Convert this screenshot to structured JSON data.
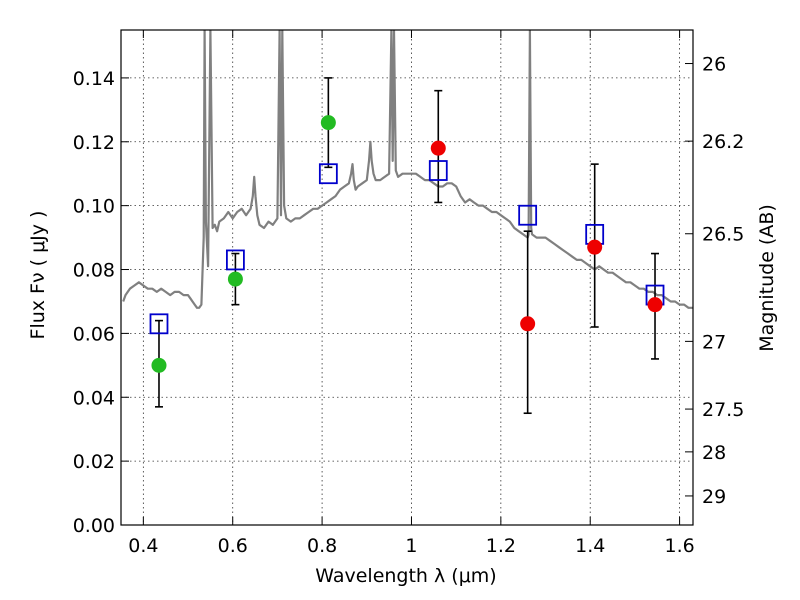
{
  "chart_data": {
    "type": "scatter",
    "title": "",
    "xlabel": "Wavelength  λ (μm)",
    "ylabel": "Flux  Fν (  μJy )",
    "ylabel_right": "Magnitude (AB)",
    "xlim": [
      0.35,
      1.63
    ],
    "ylim": [
      0.0,
      0.155
    ],
    "grid": true,
    "xticks": [
      0.4,
      0.6,
      0.8,
      1.0,
      1.2,
      1.4,
      1.6
    ],
    "xtick_labels": [
      "0.4",
      "0.6",
      "0.8",
      "1",
      "1.2",
      "1.4",
      "1.6"
    ],
    "yticks": [
      0.0,
      0.02,
      0.04,
      0.06,
      0.08,
      0.1,
      0.12,
      0.14
    ],
    "ytick_labels": [
      "0.00",
      "0.02",
      "0.04",
      "0.06",
      "0.08",
      "0.10",
      "0.12",
      "0.14"
    ],
    "right_ticks": [
      {
        "label": "26",
        "flux": 0.1445
      },
      {
        "label": "26.2",
        "flux": 0.1202
      },
      {
        "label": "26.5",
        "flux": 0.0912
      },
      {
        "label": "27",
        "flux": 0.0575
      },
      {
        "label": "27.5",
        "flux": 0.0363
      },
      {
        "label": "28",
        "flux": 0.0229
      },
      {
        "label": "29",
        "flux": 0.0091
      }
    ],
    "series": [
      {
        "name": "model_spectrum",
        "style": "line",
        "color": "#808080",
        "x": [
          0.355,
          0.36,
          0.37,
          0.38,
          0.39,
          0.4,
          0.41,
          0.42,
          0.43,
          0.44,
          0.45,
          0.46,
          0.47,
          0.48,
          0.49,
          0.5,
          0.505,
          0.51,
          0.515,
          0.52,
          0.525,
          0.53,
          0.535,
          0.537,
          0.54,
          0.545,
          0.55,
          0.555,
          0.56,
          0.565,
          0.57,
          0.58,
          0.59,
          0.6,
          0.61,
          0.62,
          0.63,
          0.64,
          0.645,
          0.648,
          0.651,
          0.655,
          0.66,
          0.67,
          0.68,
          0.69,
          0.7,
          0.705,
          0.708,
          0.711,
          0.715,
          0.72,
          0.73,
          0.74,
          0.75,
          0.76,
          0.77,
          0.78,
          0.79,
          0.8,
          0.81,
          0.82,
          0.83,
          0.84,
          0.85,
          0.86,
          0.865,
          0.868,
          0.871,
          0.875,
          0.88,
          0.89,
          0.9,
          0.905,
          0.908,
          0.911,
          0.915,
          0.92,
          0.93,
          0.94,
          0.95,
          0.955,
          0.958,
          0.961,
          0.965,
          0.97,
          0.98,
          0.99,
          1.0,
          1.01,
          1.02,
          1.03,
          1.04,
          1.05,
          1.06,
          1.07,
          1.08,
          1.09,
          1.1,
          1.11,
          1.12,
          1.13,
          1.14,
          1.15,
          1.16,
          1.17,
          1.18,
          1.19,
          1.2,
          1.21,
          1.22,
          1.23,
          1.24,
          1.25,
          1.26,
          1.262,
          1.265,
          1.268,
          1.27,
          1.28,
          1.29,
          1.3,
          1.31,
          1.32,
          1.33,
          1.34,
          1.35,
          1.36,
          1.37,
          1.38,
          1.39,
          1.4,
          1.41,
          1.42,
          1.43,
          1.44,
          1.45,
          1.46,
          1.47,
          1.48,
          1.49,
          1.5,
          1.51,
          1.52,
          1.53,
          1.54,
          1.55,
          1.56,
          1.57,
          1.58,
          1.59,
          1.6,
          1.61,
          1.62,
          1.63
        ],
        "y": [
          0.07,
          0.072,
          0.074,
          0.075,
          0.076,
          0.075,
          0.074,
          0.074,
          0.073,
          0.074,
          0.073,
          0.072,
          0.073,
          0.073,
          0.072,
          0.072,
          0.071,
          0.07,
          0.069,
          0.068,
          0.068,
          0.069,
          0.09,
          0.155,
          0.095,
          0.081,
          0.155,
          0.093,
          0.094,
          0.092,
          0.095,
          0.096,
          0.098,
          0.096,
          0.098,
          0.099,
          0.097,
          0.099,
          0.103,
          0.109,
          0.103,
          0.097,
          0.094,
          0.093,
          0.095,
          0.094,
          0.096,
          0.155,
          0.097,
          0.155,
          0.1,
          0.096,
          0.095,
          0.096,
          0.096,
          0.097,
          0.098,
          0.099,
          0.099,
          0.1,
          0.101,
          0.102,
          0.103,
          0.105,
          0.106,
          0.107,
          0.11,
          0.113,
          0.108,
          0.105,
          0.106,
          0.107,
          0.108,
          0.114,
          0.12,
          0.114,
          0.11,
          0.108,
          0.108,
          0.109,
          0.11,
          0.155,
          0.114,
          0.155,
          0.111,
          0.109,
          0.11,
          0.11,
          0.11,
          0.11,
          0.109,
          0.108,
          0.108,
          0.107,
          0.106,
          0.106,
          0.107,
          0.107,
          0.106,
          0.103,
          0.101,
          0.102,
          0.101,
          0.1,
          0.1,
          0.099,
          0.098,
          0.098,
          0.097,
          0.096,
          0.095,
          0.093,
          0.092,
          0.091,
          0.09,
          0.091,
          0.155,
          0.093,
          0.091,
          0.09,
          0.09,
          0.09,
          0.089,
          0.088,
          0.087,
          0.086,
          0.085,
          0.084,
          0.083,
          0.083,
          0.082,
          0.081,
          0.08,
          0.081,
          0.08,
          0.079,
          0.079,
          0.078,
          0.077,
          0.076,
          0.076,
          0.075,
          0.074,
          0.074,
          0.073,
          0.073,
          0.072,
          0.072,
          0.071,
          0.07,
          0.07,
          0.069,
          0.069,
          0.068,
          0.068
        ]
      },
      {
        "name": "model_photometry",
        "style": "open_square",
        "color": "#0000cc",
        "x": [
          0.435,
          0.606,
          0.814,
          1.06,
          1.26,
          1.41,
          1.545
        ],
        "y": [
          0.063,
          0.083,
          0.11,
          0.111,
          0.097,
          0.091,
          0.072
        ]
      },
      {
        "name": "observed_green",
        "style": "filled_circle",
        "color": "#22bb22",
        "x": [
          0.435,
          0.606,
          0.814
        ],
        "y": [
          0.05,
          0.077,
          0.126
        ],
        "yerr_low": [
          0.037,
          0.069,
          0.112
        ],
        "yerr_high": [
          0.064,
          0.085,
          0.14
        ]
      },
      {
        "name": "observed_red",
        "style": "filled_circle",
        "color": "#ee0000",
        "x": [
          1.06,
          1.26,
          1.41,
          1.545
        ],
        "y": [
          0.118,
          0.063,
          0.087,
          0.069
        ],
        "yerr_low": [
          0.101,
          0.035,
          0.062,
          0.052
        ],
        "yerr_high": [
          0.136,
          0.092,
          0.113,
          0.085
        ]
      }
    ]
  }
}
